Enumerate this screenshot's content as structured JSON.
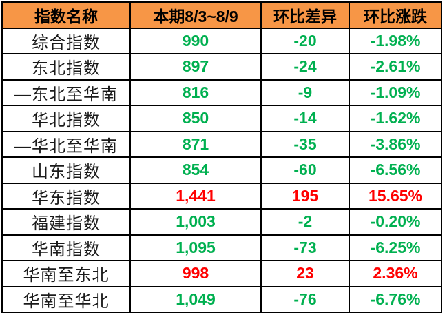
{
  "table": {
    "columns": [
      {
        "label": "指数名称"
      },
      {
        "label": "本期8/3~8/9"
      },
      {
        "label": "环比差异"
      },
      {
        "label": "环比涨跌"
      }
    ],
    "rows": [
      {
        "name": "综合指数",
        "value": "990",
        "diff": "-20",
        "pct": "-1.98%",
        "trend": "down"
      },
      {
        "name": "东北指数",
        "value": "897",
        "diff": "-24",
        "pct": "-2.61%",
        "trend": "down"
      },
      {
        "name": "—东北至华南",
        "value": "816",
        "diff": "-9",
        "pct": "-1.09%",
        "trend": "down"
      },
      {
        "name": "华北指数",
        "value": "850",
        "diff": "-14",
        "pct": "-1.62%",
        "trend": "down"
      },
      {
        "name": "—华北至华南",
        "value": "871",
        "diff": "-35",
        "pct": "-3.86%",
        "trend": "down"
      },
      {
        "name": "山东指数",
        "value": "854",
        "diff": "-60",
        "pct": "-6.56%",
        "trend": "down"
      },
      {
        "name": "华东指数",
        "value": "1,441",
        "diff": "195",
        "pct": "15.65%",
        "trend": "up"
      },
      {
        "name": "福建指数",
        "value": "1,003",
        "diff": "-2",
        "pct": "-0.20%",
        "trend": "down"
      },
      {
        "name": "华南指数",
        "value": "1,095",
        "diff": "-73",
        "pct": "-6.25%",
        "trend": "down"
      },
      {
        "name": "华南至东北",
        "value": "998",
        "diff": "23",
        "pct": "2.36%",
        "trend": "up"
      },
      {
        "name": "华南至华北",
        "value": "1,049",
        "diff": "-76",
        "pct": "-6.76%",
        "trend": "down"
      }
    ],
    "colors": {
      "header_bg": "#F79646",
      "up": "#FF0000",
      "down": "#00B050",
      "border": "#000000"
    }
  },
  "chart_data": {
    "type": "table",
    "title": "",
    "columns": [
      "指数名称",
      "本期8/3~8/9",
      "环比差异",
      "环比涨跌"
    ],
    "categories": [
      "综合指数",
      "东北指数",
      "—东北至华南",
      "华北指数",
      "—华北至华南",
      "山东指数",
      "华东指数",
      "福建指数",
      "华南指数",
      "华南至东北",
      "华南至华北"
    ],
    "series": [
      {
        "name": "本期8/3~8/9",
        "values": [
          990,
          897,
          816,
          850,
          871,
          854,
          1441,
          1003,
          1095,
          998,
          1049
        ]
      },
      {
        "name": "环比差异",
        "values": [
          -20,
          -24,
          -9,
          -14,
          -35,
          -60,
          195,
          -2,
          -73,
          23,
          -76
        ]
      },
      {
        "name": "环比涨跌_pct",
        "values": [
          -1.98,
          -2.61,
          -1.09,
          -1.62,
          -3.86,
          -6.56,
          15.65,
          -0.2,
          -6.25,
          2.36,
          -6.76
        ]
      }
    ],
    "layout_hints": {
      "positive_color": "#FF0000",
      "negative_color": "#00B050",
      "header_background": "#F79646",
      "grid": "black 2px solid, all cells centered"
    }
  }
}
